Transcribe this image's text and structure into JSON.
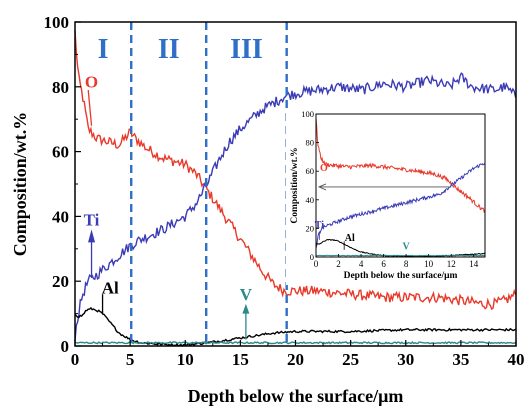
{
  "chart_data": [
    {
      "type": "line",
      "xlabel": "Depth below the surface/μm",
      "ylabel": "Composition/wt.%",
      "xlim": [
        0,
        40
      ],
      "ylim": [
        0,
        100
      ],
      "x_ticks": [
        "0",
        "5",
        "10",
        "15",
        "20",
        "25",
        "30",
        "35",
        "40"
      ],
      "y_ticks": [
        "0",
        "20",
        "40",
        "60",
        "80",
        "100"
      ],
      "grid": false,
      "legend": "none",
      "regions": [
        {
          "label": "I",
          "x_start": 0,
          "x_end": 5.1
        },
        {
          "label": "II",
          "x_start": 5.1,
          "x_end": 11.9
        },
        {
          "label": "III",
          "x_start": 11.9,
          "x_end": 19.2
        }
      ],
      "boundary_lines": [
        5.1,
        11.9,
        19.2
      ],
      "series": [
        {
          "name": "O",
          "color": "#e8392b",
          "x": [
            0,
            0.3,
            0.7,
            1.2,
            2,
            3,
            4,
            5,
            5.5,
            6.5,
            8,
            10,
            11,
            12,
            13,
            14,
            15,
            16,
            17,
            18,
            19,
            20,
            22,
            25,
            28,
            30,
            33,
            35,
            37,
            38,
            39,
            40
          ],
          "y": [
            97,
            83,
            77,
            67,
            64,
            63,
            62,
            66,
            64,
            61,
            58,
            56,
            53,
            48,
            43,
            38,
            33,
            28,
            23,
            19,
            17,
            17,
            17,
            16,
            15,
            15,
            15,
            14,
            13,
            13,
            14,
            16
          ]
        },
        {
          "name": "Ti",
          "color": "#3b3bb5",
          "x": [
            0,
            0.3,
            0.7,
            1.2,
            2,
            3,
            4,
            5,
            6,
            8,
            10,
            11,
            12,
            13,
            14,
            15,
            16,
            17,
            18,
            19,
            20,
            22,
            24,
            26,
            28,
            30,
            32,
            34,
            35,
            36,
            38,
            39,
            40
          ],
          "y": [
            3,
            10,
            16,
            20,
            22,
            25,
            28,
            31,
            33,
            36,
            40,
            44,
            50,
            57,
            63,
            67,
            70,
            73,
            75,
            77,
            78,
            79,
            80,
            79,
            81,
            80,
            82,
            80,
            83,
            80,
            79,
            80,
            77
          ]
        },
        {
          "name": "Al",
          "color": "#000000",
          "x": [
            0,
            0.3,
            0.7,
            1,
            1.5,
            2,
            2.5,
            3,
            3.5,
            4,
            5,
            6,
            8,
            10,
            12,
            14,
            16,
            18,
            20,
            25,
            30,
            35,
            40
          ],
          "y": [
            10,
            9,
            9.5,
            11,
            11.5,
            11,
            10,
            8,
            6,
            4,
            2,
            1,
            0.5,
            0.3,
            1,
            2,
            3,
            4,
            4.5,
            4.5,
            5,
            5,
            5
          ]
        },
        {
          "name": "V",
          "color": "#2b8a8a",
          "x": [
            0,
            5,
            10,
            15,
            20,
            25,
            30,
            35,
            40
          ],
          "y": [
            1,
            1,
            1,
            1,
            1,
            1,
            1,
            1,
            1
          ]
        }
      ],
      "annotations": [
        {
          "text": "O",
          "x": 1.5,
          "y": 82
        },
        {
          "text": "Ti",
          "x": 1.5,
          "y": 39
        },
        {
          "text": "Al",
          "x": 3.2,
          "y": 18
        },
        {
          "text": "V",
          "x": 15.5,
          "y": 16
        }
      ]
    },
    {
      "type": "line",
      "xlabel": "Depth below the surface/μm",
      "ylabel": "Composition/wt.%",
      "xlim": [
        0,
        15
      ],
      "ylim": [
        0,
        100
      ],
      "x_ticks": [
        "0",
        "2",
        "4",
        "6",
        "8",
        "10",
        "12",
        "14"
      ],
      "y_ticks": [
        "0",
        "20",
        "40",
        "60",
        "80",
        "100"
      ],
      "grid": false,
      "legend": "none",
      "reference_line_y": 49,
      "series": [
        {
          "name": "O",
          "color": "#e8392b",
          "x": [
            0,
            0.15,
            0.4,
            0.8,
            1.5,
            3,
            5,
            7,
            9,
            10.5,
            11.5,
            12.5,
            13.5,
            14.5,
            15
          ],
          "y": [
            97,
            80,
            70,
            65,
            64,
            63,
            64,
            62,
            60,
            58,
            55,
            48,
            42,
            35,
            32
          ]
        },
        {
          "name": "Ti",
          "color": "#3b3bb5",
          "x": [
            0,
            0.2,
            0.5,
            1,
            2,
            3,
            5,
            7,
            9,
            10,
            11,
            12,
            13,
            14,
            15
          ],
          "y": [
            5,
            15,
            20,
            22,
            25,
            28,
            32,
            36,
            40,
            42,
            44,
            50,
            56,
            62,
            66
          ]
        },
        {
          "name": "Al",
          "color": "#000000",
          "x": [
            0,
            0.3,
            0.7,
            1,
            1.5,
            2,
            2.5,
            3,
            3.5,
            4,
            5,
            6,
            8,
            10,
            12,
            14,
            15
          ],
          "y": [
            9,
            9,
            11,
            12,
            12,
            11,
            9,
            7,
            5,
            3.5,
            2,
            1,
            0.5,
            0.5,
            1,
            2,
            2.5
          ]
        },
        {
          "name": "V",
          "color": "#2b8a8a",
          "x": [
            0,
            5,
            10,
            15
          ],
          "y": [
            1,
            1,
            1,
            1
          ]
        }
      ],
      "annotations": [
        {
          "text": "O",
          "x": 0.7,
          "y": 63
        },
        {
          "text": "Ti",
          "x": 0.3,
          "y": 23
        },
        {
          "text": "Al",
          "x": 3.0,
          "y": 14
        },
        {
          "text": "V",
          "x": 8.0,
          "y": 8
        }
      ]
    }
  ]
}
